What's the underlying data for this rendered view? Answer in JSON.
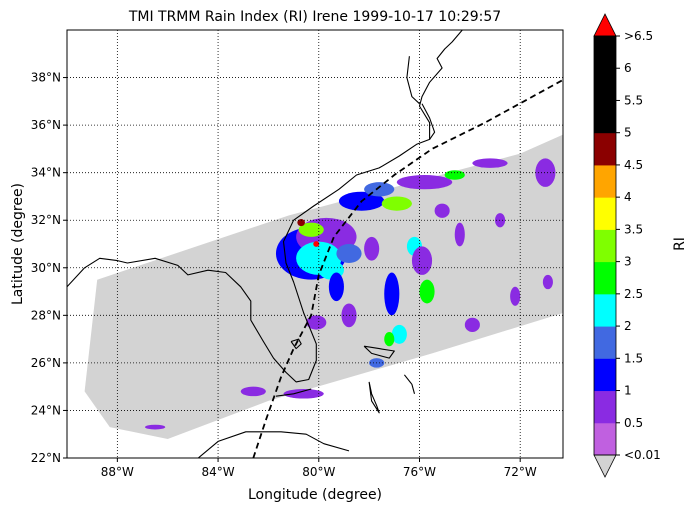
{
  "chart_data": {
    "type": "heatmap",
    "title": "TMI TRMM Rain Index (RI) Irene 1999-10-17 10:29:57",
    "xlabel": "Longitude (degree)",
    "ylabel": "Latitude (degree)",
    "xlim": [
      -90,
      -70.3
    ],
    "ylim": [
      22,
      40
    ],
    "grid": true,
    "x_ticks": [
      {
        "value": -88,
        "label": "88°W"
      },
      {
        "value": -84,
        "label": "84°W"
      },
      {
        "value": -80,
        "label": "80°W"
      },
      {
        "value": -76,
        "label": "76°W"
      },
      {
        "value": -72,
        "label": "72°W"
      }
    ],
    "y_ticks": [
      {
        "value": 22,
        "label": "22°N"
      },
      {
        "value": 24,
        "label": "24°N"
      },
      {
        "value": 26,
        "label": "26°N"
      },
      {
        "value": 28,
        "label": "28°N"
      },
      {
        "value": 30,
        "label": "30°N"
      },
      {
        "value": 32,
        "label": "32°N"
      },
      {
        "value": 34,
        "label": "34°N"
      },
      {
        "value": 36,
        "label": "36°N"
      },
      {
        "value": 38,
        "label": "38°N"
      }
    ],
    "colorbar": {
      "label": "RI",
      "levels": [
        0.01,
        0.5,
        1,
        1.5,
        2,
        2.5,
        3,
        3.5,
        4,
        4.5,
        5,
        5.5,
        6,
        6.5
      ],
      "tick_labels": [
        "<0.01",
        "0.5",
        "1",
        "1.5",
        "2",
        "2.5",
        "3",
        "3.5",
        "4",
        "4.5",
        "5",
        "5.5",
        "6",
        ">6.5"
      ],
      "colors": [
        "#c060e0",
        "#8a2be2",
        "#0000ff",
        "#4169e1",
        "#00ffff",
        "#00ff00",
        "#7fff00",
        "#ffff00",
        "#ffa500",
        "#8b0000",
        "#000000",
        "#000000",
        "#000000"
      ],
      "under_color": "#d3d3d3",
      "over_color": "#ff0000"
    },
    "swath_color": "#d3d3d3",
    "swath_polygon": [
      [
        -89.3,
        24.8
      ],
      [
        -88.8,
        29.5
      ],
      [
        -81.2,
        32.2
      ],
      [
        -72.0,
        34.8
      ],
      [
        -70.3,
        35.6
      ],
      [
        -70.3,
        28.1
      ],
      [
        -75.5,
        26.4
      ],
      [
        -82.0,
        24.4
      ],
      [
        -86.0,
        22.8
      ],
      [
        -88.3,
        23.3
      ]
    ],
    "rain_cells": [
      {
        "lon": -80.3,
        "lat": 30.6,
        "rx": 1.4,
        "ry": 1.1,
        "ri": 1.2
      },
      {
        "lon": -79.7,
        "lat": 31.3,
        "rx": 1.2,
        "ry": 0.8,
        "ri": 0.8
      },
      {
        "lon": -80.0,
        "lat": 30.4,
        "rx": 0.9,
        "ry": 0.7,
        "ri": 2.2
      },
      {
        "lon": -79.5,
        "lat": 29.9,
        "rx": 0.5,
        "ry": 0.4,
        "ri": 2.0
      },
      {
        "lon": -80.3,
        "lat": 31.6,
        "rx": 0.5,
        "ry": 0.3,
        "ri": 3.1
      },
      {
        "lon": -78.8,
        "lat": 30.6,
        "rx": 0.5,
        "ry": 0.4,
        "ri": 1.6
      },
      {
        "lon": -78.3,
        "lat": 32.8,
        "rx": 0.9,
        "ry": 0.4,
        "ri": 1.0
      },
      {
        "lon": -76.9,
        "lat": 32.7,
        "rx": 0.6,
        "ry": 0.3,
        "ri": 3.0
      },
      {
        "lon": -77.6,
        "lat": 33.3,
        "rx": 0.6,
        "ry": 0.3,
        "ri": 1.8
      },
      {
        "lon": -75.8,
        "lat": 33.6,
        "rx": 1.1,
        "ry": 0.3,
        "ri": 0.8
      },
      {
        "lon": -74.6,
        "lat": 33.9,
        "rx": 0.4,
        "ry": 0.2,
        "ri": 2.7
      },
      {
        "lon": -73.2,
        "lat": 34.4,
        "rx": 0.7,
        "ry": 0.2,
        "ri": 0.6
      },
      {
        "lon": -71.0,
        "lat": 34.0,
        "rx": 0.4,
        "ry": 0.6,
        "ri": 0.5
      },
      {
        "lon": -76.2,
        "lat": 30.9,
        "rx": 0.3,
        "ry": 0.4,
        "ri": 2.0
      },
      {
        "lon": -75.7,
        "lat": 29.0,
        "rx": 0.3,
        "ry": 0.5,
        "ri": 2.8
      },
      {
        "lon": -75.9,
        "lat": 30.3,
        "rx": 0.4,
        "ry": 0.6,
        "ri": 0.9
      },
      {
        "lon": -77.1,
        "lat": 28.9,
        "rx": 0.3,
        "ry": 0.9,
        "ri": 1.0
      },
      {
        "lon": -76.8,
        "lat": 27.2,
        "rx": 0.3,
        "ry": 0.4,
        "ri": 2.2
      },
      {
        "lon": -77.2,
        "lat": 27.0,
        "rx": 0.2,
        "ry": 0.3,
        "ri": 2.8
      },
      {
        "lon": -77.7,
        "lat": 26.0,
        "rx": 0.3,
        "ry": 0.2,
        "ri": 1.9
      },
      {
        "lon": -78.8,
        "lat": 28.0,
        "rx": 0.3,
        "ry": 0.5,
        "ri": 0.8
      },
      {
        "lon": -79.3,
        "lat": 29.2,
        "rx": 0.3,
        "ry": 0.6,
        "ri": 1.1
      },
      {
        "lon": -77.9,
        "lat": 30.8,
        "rx": 0.3,
        "ry": 0.5,
        "ri": 0.7
      },
      {
        "lon": -72.2,
        "lat": 28.8,
        "rx": 0.2,
        "ry": 0.4,
        "ri": 0.6
      },
      {
        "lon": -70.9,
        "lat": 29.4,
        "rx": 0.2,
        "ry": 0.3,
        "ri": 0.6
      },
      {
        "lon": -73.9,
        "lat": 27.6,
        "rx": 0.3,
        "ry": 0.3,
        "ri": 0.6
      },
      {
        "lon": -74.4,
        "lat": 31.4,
        "rx": 0.2,
        "ry": 0.5,
        "ri": 0.6
      },
      {
        "lon": -72.8,
        "lat": 32.0,
        "rx": 0.2,
        "ry": 0.3,
        "ri": 0.6
      },
      {
        "lon": -75.1,
        "lat": 32.4,
        "rx": 0.3,
        "ry": 0.3,
        "ri": 0.6
      },
      {
        "lon": -80.6,
        "lat": 24.7,
        "rx": 0.8,
        "ry": 0.2,
        "ri": 0.5
      },
      {
        "lon": -82.6,
        "lat": 24.8,
        "rx": 0.5,
        "ry": 0.2,
        "ri": 0.5
      },
      {
        "lon": -86.5,
        "lat": 23.3,
        "rx": 0.4,
        "ry": 0.1,
        "ri": 0.5
      },
      {
        "lon": -80.1,
        "lat": 27.7,
        "rx": 0.4,
        "ry": 0.3,
        "ri": 0.5
      },
      {
        "lon": -80.7,
        "lat": 31.9,
        "rx": 0.15,
        "ry": 0.15,
        "ri": 4.8
      },
      {
        "lon": -80.1,
        "lat": 31.0,
        "rx": 0.12,
        "ry": 0.12,
        "ri": 6.8
      }
    ],
    "storm_track": [
      [
        -82.6,
        22.0
      ],
      [
        -82.1,
        23.6
      ],
      [
        -81.5,
        25.4
      ],
      [
        -81.0,
        26.6
      ],
      [
        -80.3,
        28.0
      ],
      [
        -80.0,
        29.7
      ],
      [
        -79.4,
        31.3
      ],
      [
        -78.3,
        32.8
      ],
      [
        -77.0,
        33.9
      ],
      [
        -75.5,
        35.0
      ],
      [
        -73.4,
        36.1
      ],
      [
        -70.3,
        37.9
      ]
    ],
    "coastlines": [
      [
        [
          -90,
          29.2
        ],
        [
          -89.3,
          30.0
        ],
        [
          -88.7,
          30.4
        ],
        [
          -88.0,
          30.3
        ],
        [
          -87.6,
          30.2
        ],
        [
          -86.5,
          30.4
        ],
        [
          -85.6,
          30.1
        ],
        [
          -85.2,
          29.7
        ],
        [
          -84.4,
          29.9
        ],
        [
          -83.7,
          29.8
        ],
        [
          -83.1,
          29.2
        ],
        [
          -82.7,
          28.6
        ],
        [
          -82.7,
          27.8
        ],
        [
          -82.2,
          26.9
        ],
        [
          -81.8,
          26.2
        ],
        [
          -81.3,
          25.6
        ],
        [
          -80.9,
          25.2
        ],
        [
          -80.4,
          25.3
        ],
        [
          -80.1,
          26.1
        ],
        [
          -80.1,
          26.8
        ],
        [
          -80.6,
          28.1
        ],
        [
          -81.0,
          29.4
        ],
        [
          -81.3,
          30.2
        ],
        [
          -81.4,
          31.1
        ],
        [
          -81.0,
          32.0
        ],
        [
          -80.2,
          32.6
        ],
        [
          -79.2,
          33.3
        ],
        [
          -78.5,
          33.9
        ],
        [
          -77.6,
          34.2
        ],
        [
          -76.8,
          34.7
        ],
        [
          -76.1,
          35.2
        ],
        [
          -75.6,
          35.4
        ],
        [
          -75.6,
          36.1
        ],
        [
          -76.0,
          36.8
        ],
        [
          -75.9,
          37.2
        ],
        [
          -75.6,
          37.8
        ],
        [
          -75.1,
          38.4
        ],
        [
          -75.3,
          38.8
        ],
        [
          -75.0,
          39.2
        ],
        [
          -74.7,
          39.5
        ],
        [
          -74.3,
          40.0
        ]
      ],
      [
        [
          -75.6,
          35.4
        ],
        [
          -75.4,
          35.7
        ],
        [
          -75.6,
          36.3
        ],
        [
          -75.9,
          36.9
        ]
      ],
      [
        [
          -81.1,
          26.9
        ],
        [
          -80.8,
          27.0
        ],
        [
          -80.7,
          26.8
        ],
        [
          -80.9,
          26.6
        ],
        [
          -81.1,
          26.9
        ]
      ],
      [
        [
          -80.3,
          24.9
        ],
        [
          -81.0,
          24.7
        ],
        [
          -81.7,
          24.6
        ]
      ],
      [
        [
          -78.2,
          26.7
        ],
        [
          -77.6,
          26.6
        ],
        [
          -77.0,
          26.5
        ],
        [
          -77.2,
          26.2
        ],
        [
          -77.9,
          26.4
        ],
        [
          -78.2,
          26.7
        ]
      ],
      [
        [
          -78.0,
          25.2
        ],
        [
          -77.9,
          24.7
        ],
        [
          -77.7,
          24.2
        ],
        [
          -77.6,
          23.9
        ],
        [
          -77.9,
          24.4
        ],
        [
          -78.0,
          25.2
        ]
      ],
      [
        [
          -76.6,
          25.5
        ],
        [
          -76.3,
          25.1
        ],
        [
          -76.2,
          24.7
        ]
      ],
      [
        [
          -84.9,
          21.9
        ],
        [
          -84.0,
          22.7
        ],
        [
          -82.9,
          23.1
        ],
        [
          -81.5,
          23.1
        ],
        [
          -80.5,
          23.0
        ],
        [
          -79.8,
          22.6
        ],
        [
          -78.8,
          22.3
        ]
      ],
      [
        [
          -76.4,
          38.9
        ],
        [
          -76.5,
          38.0
        ],
        [
          -76.3,
          37.2
        ],
        [
          -76.0,
          36.9
        ]
      ]
    ]
  }
}
